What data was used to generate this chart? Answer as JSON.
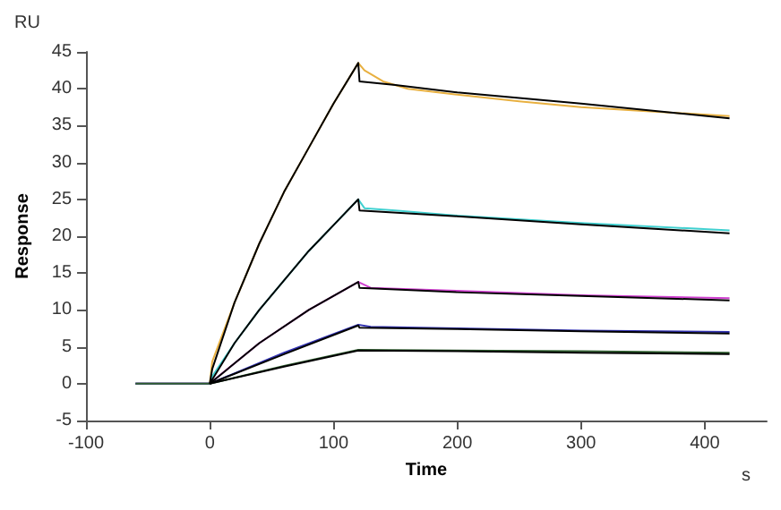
{
  "chart_data": {
    "type": "line",
    "xlabel": "Time",
    "ylabel": "Response",
    "annotations": [
      "RU",
      "s"
    ],
    "xlim": [
      -100,
      450
    ],
    "xticks": [
      -100,
      0,
      100,
      200,
      300,
      400
    ],
    "ylim": [
      -5,
      45
    ],
    "yticks": [
      -5,
      0,
      5,
      10,
      15,
      20,
      25,
      30,
      35,
      40,
      45
    ],
    "grid": false,
    "marker": "none",
    "line_style": "solid",
    "series": [
      {
        "color": "#e8b040",
        "x": [
          -60,
          0,
          2,
          20,
          40,
          60,
          80,
          100,
          120,
          125,
          140,
          160,
          200,
          250,
          300,
          350,
          420
        ],
        "values": [
          0,
          0,
          3,
          11,
          19,
          26,
          32,
          38,
          43.5,
          42.5,
          41,
          40,
          39.2,
          38.3,
          37.5,
          37,
          36.3
        ]
      },
      {
        "color": "#40d0d0",
        "x": [
          -60,
          0,
          2,
          20,
          40,
          60,
          80,
          100,
          120,
          125,
          150,
          200,
          300,
          420
        ],
        "values": [
          0,
          0,
          1,
          5.5,
          10,
          14,
          18,
          21.5,
          25,
          23.8,
          23.5,
          22.8,
          21.8,
          20.8
        ]
      },
      {
        "color": "#d040d0",
        "x": [
          -60,
          0,
          2,
          40,
          80,
          120,
          130,
          200,
          300,
          420
        ],
        "values": [
          0,
          0,
          0.3,
          5.5,
          10,
          13.8,
          13,
          12.6,
          12,
          11.6
        ]
      },
      {
        "color": "#3030b0",
        "x": [
          -60,
          0,
          60,
          120,
          130,
          200,
          300,
          420
        ],
        "values": [
          0,
          0,
          4.2,
          8,
          7.7,
          7.5,
          7.2,
          7
        ]
      },
      {
        "color": "#306030",
        "x": [
          -60,
          0,
          60,
          120,
          200,
          300,
          420
        ],
        "values": [
          0,
          0,
          2.4,
          4.6,
          4.5,
          4.4,
          4.2
        ]
      },
      {
        "color": "#000000",
        "x": [
          0,
          2,
          20,
          40,
          60,
          80,
          100,
          120,
          121,
          150,
          200,
          300,
          420
        ],
        "values": [
          0,
          2,
          11,
          19,
          26,
          32,
          38,
          43.5,
          41,
          40.5,
          39.5,
          38,
          36
        ]
      },
      {
        "color": "#000000",
        "x": [
          0,
          20,
          40,
          60,
          80,
          100,
          120,
          121,
          200,
          300,
          420
        ],
        "values": [
          0,
          5.5,
          10,
          14,
          18,
          21.5,
          25,
          23.5,
          22.7,
          21.6,
          20.4
        ]
      },
      {
        "color": "#000000",
        "x": [
          0,
          40,
          80,
          120,
          121,
          200,
          300,
          420
        ],
        "values": [
          0,
          5.5,
          10,
          13.8,
          13,
          12.4,
          11.9,
          11.3
        ]
      },
      {
        "color": "#000000",
        "x": [
          0,
          60,
          120,
          121,
          200,
          300,
          420
        ],
        "values": [
          0,
          4,
          7.9,
          7.6,
          7.4,
          7.1,
          6.8
        ]
      },
      {
        "color": "#000000",
        "x": [
          0,
          60,
          120,
          200,
          300,
          420
        ],
        "values": [
          0,
          2.3,
          4.5,
          4.4,
          4.2,
          4
        ]
      }
    ]
  }
}
